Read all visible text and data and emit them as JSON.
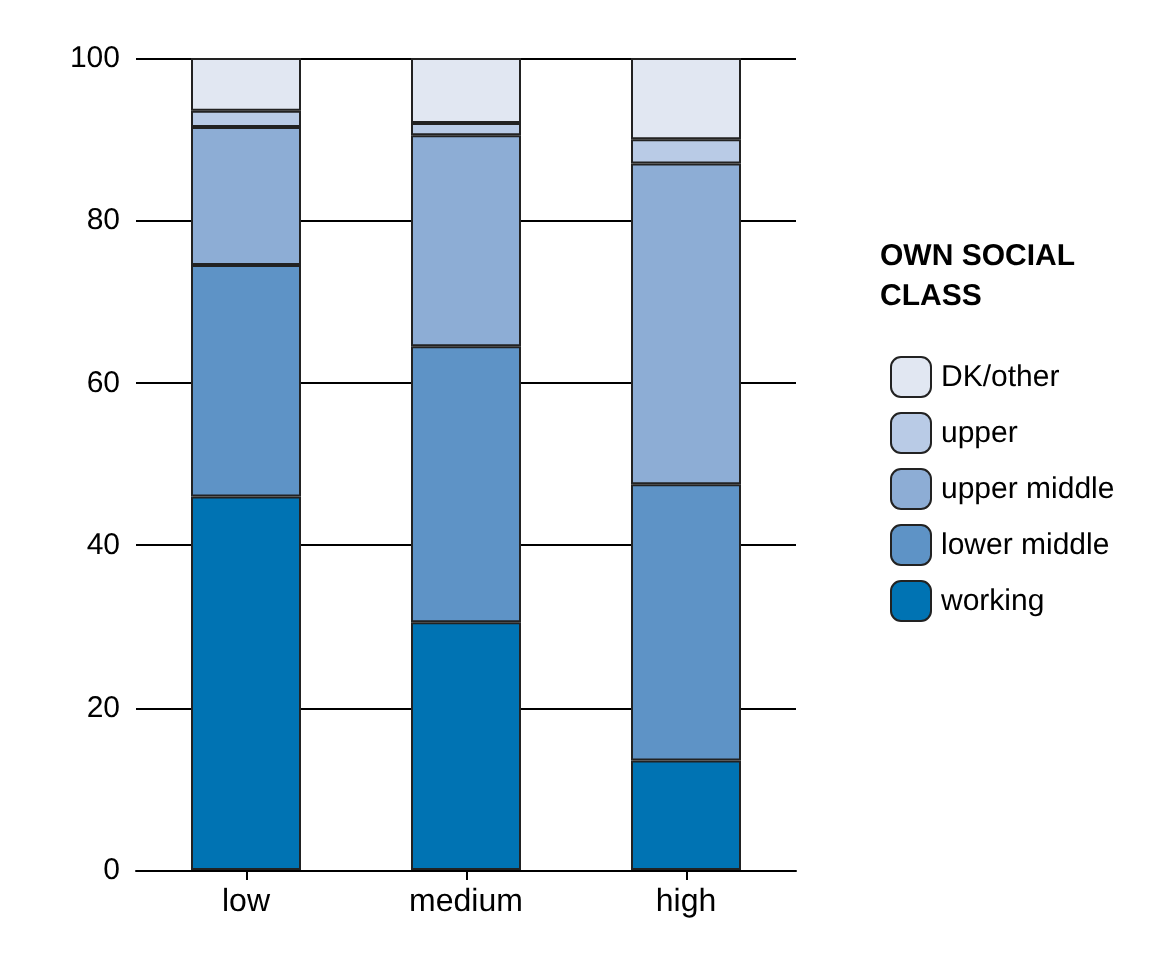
{
  "chart_data": {
    "type": "bar",
    "stacked": true,
    "legend_title": "OWN SOCIAL CLASS",
    "categories": [
      "low",
      "medium",
      "high"
    ],
    "series": [
      {
        "name": "working",
        "color": "#0073b3",
        "values": [
          46,
          30.5,
          13.5
        ]
      },
      {
        "name": "lower middle",
        "color": "#5e93c6",
        "values": [
          28.5,
          34,
          34
        ]
      },
      {
        "name": "upper middle",
        "color": "#8dadd5",
        "values": [
          17,
          26,
          39.5
        ]
      },
      {
        "name": "upper",
        "color": "#b9cbe6",
        "values": [
          2,
          1.5,
          3
        ]
      },
      {
        "name": "DK/other",
        "color": "#e1e7f2",
        "values": [
          6.5,
          8,
          10
        ]
      }
    ],
    "ylim": [
      0,
      100
    ],
    "yticks": [
      0,
      20,
      40,
      60,
      80,
      100
    ],
    "grid": "y",
    "legend": "right"
  }
}
